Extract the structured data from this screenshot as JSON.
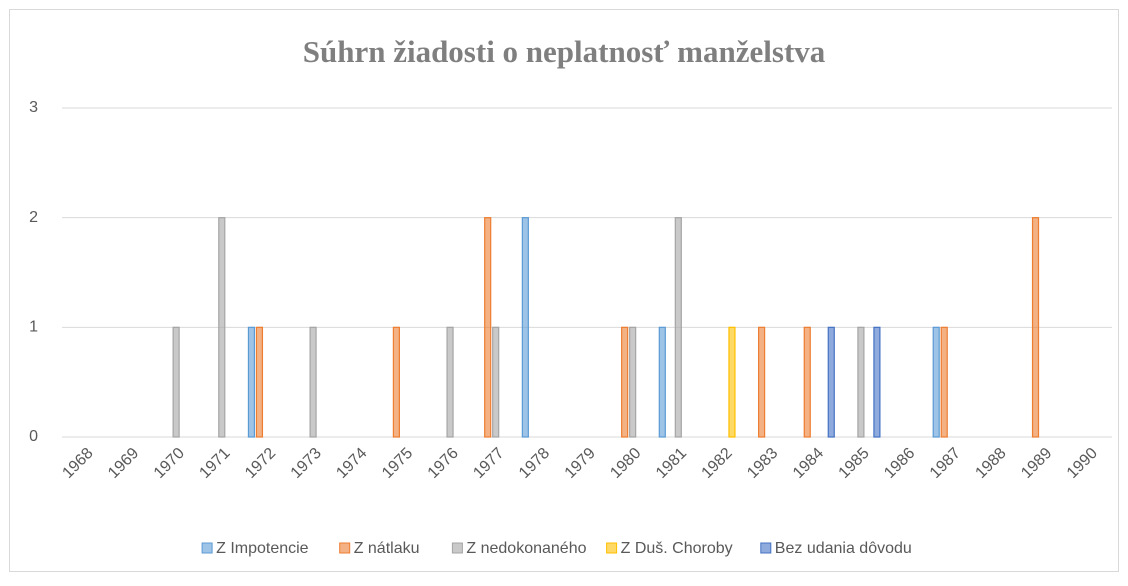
{
  "chart_data": {
    "type": "bar",
    "title": "Súhrn žiadosti o neplatnosť manželstva",
    "categories": [
      "1968",
      "1969",
      "1970",
      "1971",
      "1972",
      "1973",
      "1974",
      "1975",
      "1976",
      "1977",
      "1978",
      "1979",
      "1980",
      "1981",
      "1982",
      "1983",
      "1984",
      "1985",
      "1986",
      "1987",
      "1988",
      "1989",
      "1990"
    ],
    "series": [
      {
        "name": "Z Impotencie",
        "color": "#5b9bd5",
        "values": [
          0,
          0,
          0,
          0,
          1,
          0,
          0,
          0,
          0,
          0,
          2,
          0,
          0,
          1,
          0,
          0,
          0,
          0,
          0,
          1,
          0,
          0,
          0
        ]
      },
      {
        "name": "Z nátlaku",
        "color": "#ed7d31",
        "values": [
          0,
          0,
          0,
          0,
          1,
          0,
          0,
          1,
          0,
          2,
          0,
          0,
          1,
          0,
          0,
          1,
          1,
          0,
          0,
          1,
          0,
          2,
          0
        ]
      },
      {
        "name": "Z nedokonaného",
        "color": "#a5a5a5",
        "values": [
          0,
          0,
          1,
          2,
          0,
          1,
          0,
          0,
          1,
          1,
          0,
          0,
          1,
          2,
          0,
          0,
          0,
          1,
          0,
          0,
          0,
          0,
          0
        ]
      },
      {
        "name": "Z Duš. Choroby",
        "color": "#ffc000",
        "values": [
          0,
          0,
          0,
          0,
          0,
          0,
          0,
          0,
          0,
          0,
          0,
          0,
          0,
          0,
          1,
          0,
          0,
          0,
          0,
          0,
          0,
          0,
          0
        ]
      },
      {
        "name": "Bez udania dôvodu",
        "color": "#4472c4",
        "values": [
          0,
          0,
          0,
          0,
          0,
          0,
          0,
          0,
          0,
          0,
          0,
          0,
          0,
          0,
          0,
          0,
          1,
          1,
          0,
          0,
          0,
          0,
          0
        ]
      }
    ],
    "ylim": [
      0,
      3
    ],
    "yticks": [
      0,
      1,
      2,
      3
    ],
    "grid": true,
    "legend": "bottom"
  }
}
